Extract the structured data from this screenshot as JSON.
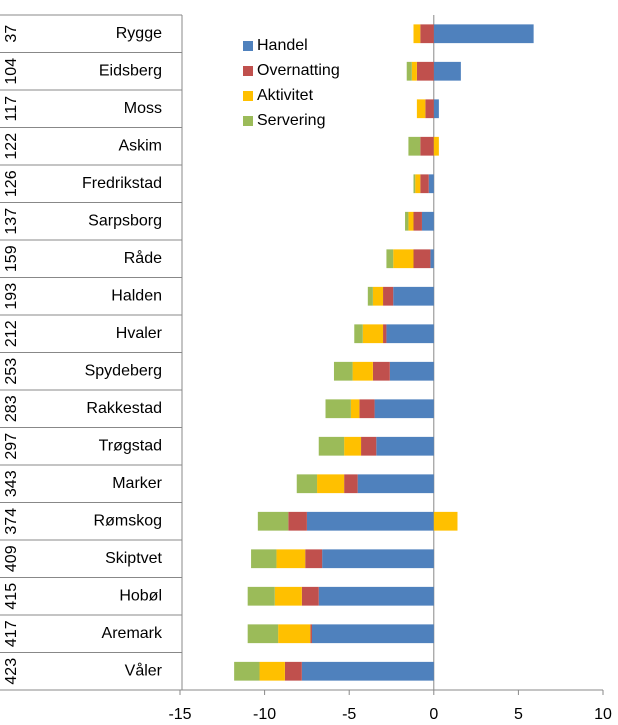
{
  "chart_data": {
    "type": "bar",
    "orientation": "horizontal",
    "stacked": true,
    "rank_labels": [
      "37",
      "104",
      "117",
      "122",
      "126",
      "137",
      "159",
      "193",
      "212",
      "253",
      "283",
      "297",
      "343",
      "374",
      "409",
      "415",
      "417",
      "423"
    ],
    "categories": [
      "Rygge",
      "Eidsberg",
      "Moss",
      "Askim",
      "Fredrikstad",
      "Sarpsborg",
      "Råde",
      "Halden",
      "Hvaler",
      "Spydeberg",
      "Rakkestad",
      "Trøgstad",
      "Marker",
      "Rømskog",
      "Skiptvet",
      "Hobøl",
      "Aremark",
      "Våler"
    ],
    "series": [
      {
        "name": "Handel",
        "color": "#4f81bd",
        "values": [
          5.9,
          1.6,
          0.3,
          0,
          -0.3,
          -0.7,
          -0.2,
          -2.4,
          -2.8,
          -2.6,
          -3.5,
          -3.4,
          -4.5,
          -7.5,
          -6.6,
          -6.8,
          -7.2,
          -7.8
        ]
      },
      {
        "name": "Overnatting",
        "color": "#c0504d",
        "values": [
          -0.8,
          -1.0,
          -0.5,
          -0.8,
          -0.5,
          -0.5,
          -1.0,
          -0.6,
          -0.2,
          -1.0,
          -0.9,
          -0.9,
          -0.8,
          -1.1,
          -1.0,
          -1.0,
          -0.1,
          -1.0
        ]
      },
      {
        "name": "Aktivitet",
        "color": "#ffc000",
        "values": [
          -0.4,
          -0.3,
          -0.5,
          0.3,
          -0.3,
          -0.3,
          -1.2,
          -0.6,
          -1.2,
          -1.2,
          -0.5,
          -1.0,
          -1.6,
          1.4,
          -1.7,
          -1.6,
          -1.9,
          -1.5
        ]
      },
      {
        "name": "Servering",
        "color": "#9bbb59",
        "values": [
          0,
          -0.3,
          0,
          -0.7,
          -0.1,
          -0.2,
          -0.4,
          -0.3,
          -0.5,
          -1.1,
          -1.5,
          -1.5,
          -1.2,
          -1.8,
          -1.5,
          -1.6,
          -1.8,
          -1.5
        ]
      }
    ],
    "xlim": [
      -15,
      10
    ],
    "xticks": [
      -15,
      -10,
      -5,
      0,
      5,
      10
    ],
    "legend": "top-left"
  }
}
